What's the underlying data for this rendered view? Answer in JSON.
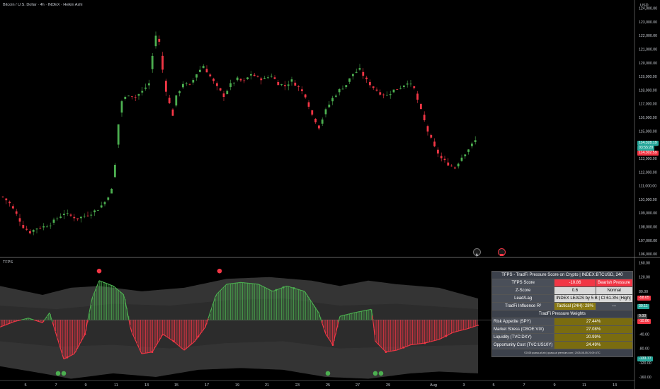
{
  "header": {
    "title": "Bitcoin / U.S. Dollar · 4h · INDEX · Heikin Ashi",
    "currency": "USD",
    "indicator_label": "TFPS"
  },
  "price_tags": {
    "last_price": "114,328.19",
    "countdown": "03:55:28",
    "secondary_price": "114,302.59",
    "colors": {
      "up": "#26a69a",
      "down": "#f23645"
    }
  },
  "indicator_tags": {
    "tag1": "-58.05",
    "tag2": "30.11",
    "tag3": "0.00",
    "tag4": "-10.86",
    "tag5": "-133.77"
  },
  "tfps_table": {
    "title": "TFPS - TradFi Pressure Score on Crypto | INDEX:BTCUSD, 240",
    "rows": [
      {
        "label": "TFPS Score",
        "value": "-10.86",
        "status": "Bearish Pressure"
      },
      {
        "label": "Z-Score",
        "value": "0.6",
        "status": "Normal"
      },
      {
        "label": "Lead/Lag",
        "value": "INDEX LEADS by 5 B | CI 61.3% [High]"
      },
      {
        "label": "TradFi Influence R²",
        "value": "Tactical (24H): 28%",
        "status": "---"
      }
    ],
    "weights_title": "TradFi Pressure Weights",
    "weights": [
      {
        "label": "Risk Appetite (SPY)",
        "value": "27.44%"
      },
      {
        "label": "Market Stress (CBOE:VIX)",
        "value": "27.08%"
      },
      {
        "label": "Liquidity (TVC:DXY)",
        "value": "20.99%"
      },
      {
        "label": "Opportunity Cost (TVC:US10Y)",
        "value": "24.49%"
      }
    ],
    "footer": "©2025 quasa-ait.ah | quasa-ai premium.com | 2025-08-05 20:09 UTC"
  },
  "chart_data": [
    {
      "type": "candlestick",
      "title": "Bitcoin / U.S. Dollar · 4h · INDEX · Heikin Ashi",
      "x_ticks": [
        "5",
        "7",
        "9",
        "11",
        "13",
        "15",
        "17",
        "19",
        "21",
        "23",
        "25",
        "27",
        "29",
        "Aug",
        "3",
        "5",
        "7",
        "9",
        "11",
        "13"
      ],
      "y_ticks": [
        106000,
        107000,
        108000,
        109000,
        110000,
        111000,
        112000,
        113000,
        114000,
        115000,
        116000,
        117000,
        118000,
        119000,
        120000,
        121000,
        122000,
        123000,
        124000
      ],
      "ylim": [
        105800,
        124600
      ],
      "close_path": [
        [
          0,
          110200
        ],
        [
          2,
          109700
        ],
        [
          4,
          108900
        ],
        [
          6,
          108000
        ],
        [
          8,
          107600
        ],
        [
          10,
          107900
        ],
        [
          12,
          108000
        ],
        [
          14,
          108200
        ],
        [
          16,
          108600
        ],
        [
          18,
          109000
        ],
        [
          20,
          108800
        ],
        [
          22,
          108600
        ],
        [
          24,
          108800
        ],
        [
          26,
          109000
        ],
        [
          28,
          109300
        ],
        [
          30,
          109800
        ],
        [
          32,
          110700
        ],
        [
          33,
          112500
        ],
        [
          34,
          115500
        ],
        [
          35,
          117200
        ],
        [
          37,
          117700
        ],
        [
          39,
          117500
        ],
        [
          41,
          117900
        ],
        [
          43,
          118500
        ],
        [
          44,
          120500
        ],
        [
          45,
          122000
        ],
        [
          46,
          121500
        ],
        [
          47,
          119500
        ],
        [
          48,
          118000
        ],
        [
          49,
          117000
        ],
        [
          50,
          116200
        ],
        [
          51,
          117500
        ],
        [
          53,
          118500
        ],
        [
          55,
          118300
        ],
        [
          57,
          119200
        ],
        [
          59,
          119800
        ],
        [
          61,
          119000
        ],
        [
          63,
          118200
        ],
        [
          65,
          117600
        ],
        [
          67,
          118400
        ],
        [
          69,
          118800
        ],
        [
          71,
          118600
        ],
        [
          73,
          119200
        ],
        [
          75,
          118900
        ],
        [
          77,
          118800
        ],
        [
          79,
          119100
        ],
        [
          81,
          118500
        ],
        [
          83,
          118300
        ],
        [
          85,
          118700
        ],
        [
          87,
          118200
        ],
        [
          89,
          117600
        ],
        [
          91,
          116200
        ],
        [
          93,
          115300
        ],
        [
          95,
          116500
        ],
        [
          97,
          117400
        ],
        [
          99,
          118000
        ],
        [
          101,
          118400
        ],
        [
          103,
          119200
        ],
        [
          105,
          119500
        ],
        [
          107,
          118700
        ],
        [
          109,
          118200
        ],
        [
          111,
          117800
        ],
        [
          113,
          117600
        ],
        [
          115,
          118000
        ],
        [
          117,
          118200
        ],
        [
          119,
          118600
        ],
        [
          121,
          118100
        ],
        [
          123,
          116500
        ],
        [
          125,
          115000
        ],
        [
          127,
          113800
        ],
        [
          129,
          113000
        ],
        [
          131,
          112600
        ],
        [
          133,
          112300
        ],
        [
          135,
          113100
        ],
        [
          137,
          113700
        ],
        [
          139,
          114300
        ]
      ]
    },
    {
      "type": "histogram",
      "title": "TFPS",
      "y_ticks": [
        160,
        120,
        80,
        40,
        0,
        -40,
        -80,
        -120,
        -160
      ],
      "ylim": [
        -170,
        175
      ],
      "last_value": -10.86
    }
  ]
}
